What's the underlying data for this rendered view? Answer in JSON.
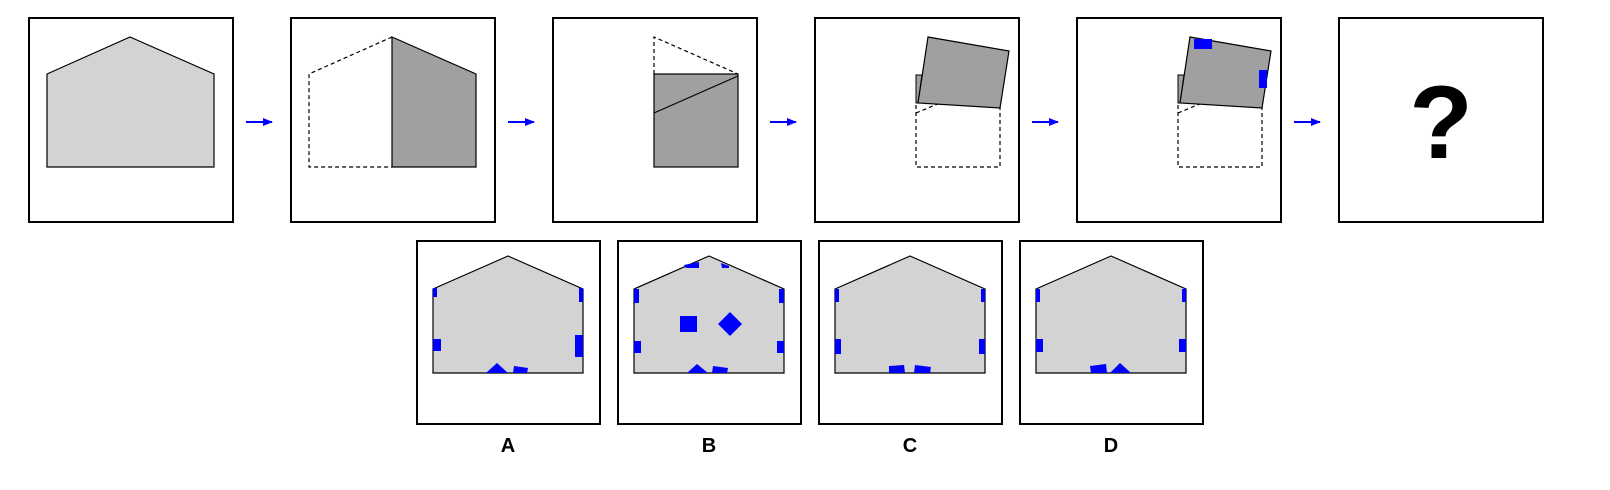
{
  "sequence": {
    "question_mark": "?"
  },
  "options": {
    "a": {
      "label": "A"
    },
    "b": {
      "label": "B"
    },
    "c": {
      "label": "C"
    },
    "d": {
      "label": "D"
    }
  },
  "colors": {
    "paper": "#d3d3d3",
    "folded": "#a0a0a0",
    "hole": "#0000ff",
    "arrow": "#0000ff",
    "frame": "#000000"
  }
}
